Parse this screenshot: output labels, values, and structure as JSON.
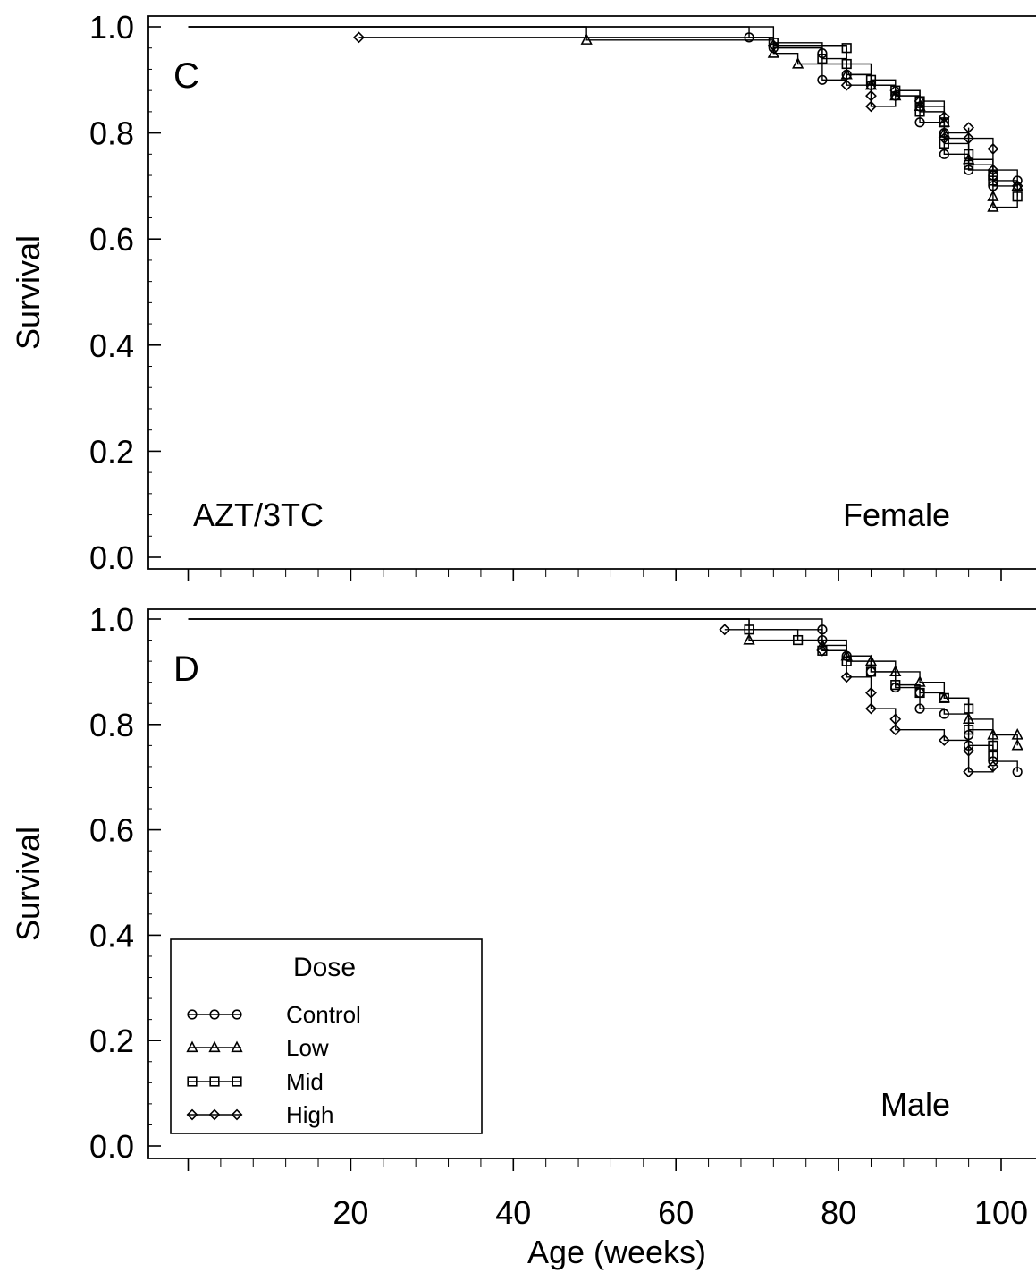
{
  "colors": {
    "line": "#000000",
    "background": "#ffffff"
  },
  "chart_data": [
    {
      "type": "line",
      "panel_label": "C",
      "title": "",
      "xlabel": "",
      "ylabel": "Survival",
      "xlim": [
        -5,
        108
      ],
      "ylim": [
        -0.015,
        1.02
      ],
      "xticks": [],
      "yticks": [
        0.0,
        0.2,
        0.4,
        0.6,
        0.8,
        1.0
      ],
      "ytick_labels": [
        "0.0",
        "0.2",
        "0.4",
        "0.6",
        "0.8",
        "1.0"
      ],
      "annotations": [
        {
          "text": "AZT/3TC",
          "position": "bottom-left"
        },
        {
          "text": "Female",
          "position": "bottom-right"
        }
      ],
      "grid": false,
      "series": [
        {
          "marker": "circle",
          "x": [
            0,
            69,
            72,
            78,
            78,
            81,
            84,
            87,
            90,
            90,
            93,
            93,
            96,
            99,
            99,
            102
          ],
          "y": [
            1.0,
            0.98,
            0.96,
            0.95,
            0.9,
            0.91,
            0.89,
            0.87,
            0.85,
            0.82,
            0.8,
            0.76,
            0.73,
            0.72,
            0.7,
            0.71
          ]
        },
        {
          "marker": "triangle",
          "x": [
            0,
            49,
            72,
            75,
            81,
            84,
            87,
            90,
            93,
            93,
            96,
            99,
            99,
            102
          ],
          "y": [
            1.0,
            0.975,
            0.95,
            0.93,
            0.91,
            0.89,
            0.87,
            0.85,
            0.82,
            0.8,
            0.75,
            0.68,
            0.66,
            0.7
          ]
        },
        {
          "marker": "square",
          "x": [
            0,
            72,
            78,
            81,
            81,
            84,
            87,
            90,
            90,
            93,
            93,
            96,
            96,
            99,
            99,
            102
          ],
          "y": [
            1.0,
            0.97,
            0.94,
            0.96,
            0.93,
            0.9,
            0.88,
            0.86,
            0.84,
            0.82,
            0.78,
            0.76,
            0.74,
            0.72,
            0.71,
            0.68
          ]
        },
        {
          "marker": "diamond",
          "x": [
            21,
            72,
            81,
            84,
            84,
            87,
            90,
            93,
            93,
            96,
            96,
            99,
            99,
            102
          ],
          "y": [
            0.98,
            0.965,
            0.89,
            0.87,
            0.85,
            0.88,
            0.86,
            0.83,
            0.79,
            0.81,
            0.79,
            0.77,
            0.73,
            0.7
          ]
        }
      ]
    },
    {
      "type": "line",
      "panel_label": "D",
      "title": "",
      "xlabel": "Age (weeks)",
      "ylabel": "Survival",
      "xlim": [
        -5,
        108
      ],
      "ylim": [
        -0.015,
        1.02
      ],
      "xticks": [
        20,
        40,
        60,
        80,
        100
      ],
      "xtick_labels": [
        "20",
        "40",
        "60",
        "80",
        "100"
      ],
      "yticks": [
        0.0,
        0.2,
        0.4,
        0.6,
        0.8,
        1.0
      ],
      "ytick_labels": [
        "0.0",
        "0.2",
        "0.4",
        "0.6",
        "0.8",
        "1.0"
      ],
      "annotations": [
        {
          "text": "Male",
          "position": "bottom-right"
        }
      ],
      "grid": false,
      "legend": {
        "title": "Dose",
        "placement": "bottom-left",
        "entries": [
          {
            "label": "Control",
            "marker": "circle"
          },
          {
            "label": "Low",
            "marker": "triangle"
          },
          {
            "label": "Mid",
            "marker": "square"
          },
          {
            "label": "High",
            "marker": "diamond"
          }
        ]
      },
      "series": [
        {
          "name": "Control",
          "marker": "circle",
          "x": [
            0,
            78,
            78,
            81,
            84,
            87,
            90,
            90,
            93,
            96,
            96,
            99,
            102
          ],
          "y": [
            1.0,
            0.98,
            0.96,
            0.93,
            0.9,
            0.87,
            0.86,
            0.83,
            0.82,
            0.78,
            0.76,
            0.73,
            0.71
          ]
        },
        {
          "name": "Low",
          "marker": "triangle",
          "x": [
            0,
            69,
            78,
            81,
            84,
            87,
            90,
            93,
            96,
            99,
            102,
            102
          ],
          "y": [
            1.0,
            0.96,
            0.95,
            0.93,
            0.92,
            0.9,
            0.88,
            0.85,
            0.81,
            0.78,
            0.78,
            0.76
          ]
        },
        {
          "name": "Mid",
          "marker": "square",
          "x": [
            0,
            69,
            75,
            78,
            81,
            84,
            87,
            90,
            93,
            96,
            96,
            99,
            99
          ],
          "y": [
            1.0,
            0.98,
            0.96,
            0.94,
            0.92,
            0.9,
            0.875,
            0.86,
            0.85,
            0.83,
            0.79,
            0.76,
            0.74
          ]
        },
        {
          "name": "High",
          "marker": "diamond",
          "x": [
            66,
            78,
            81,
            84,
            84,
            87,
            87,
            93,
            96,
            96,
            99
          ],
          "y": [
            0.98,
            0.94,
            0.89,
            0.86,
            0.83,
            0.81,
            0.79,
            0.77,
            0.75,
            0.71,
            0.72
          ]
        }
      ]
    }
  ]
}
